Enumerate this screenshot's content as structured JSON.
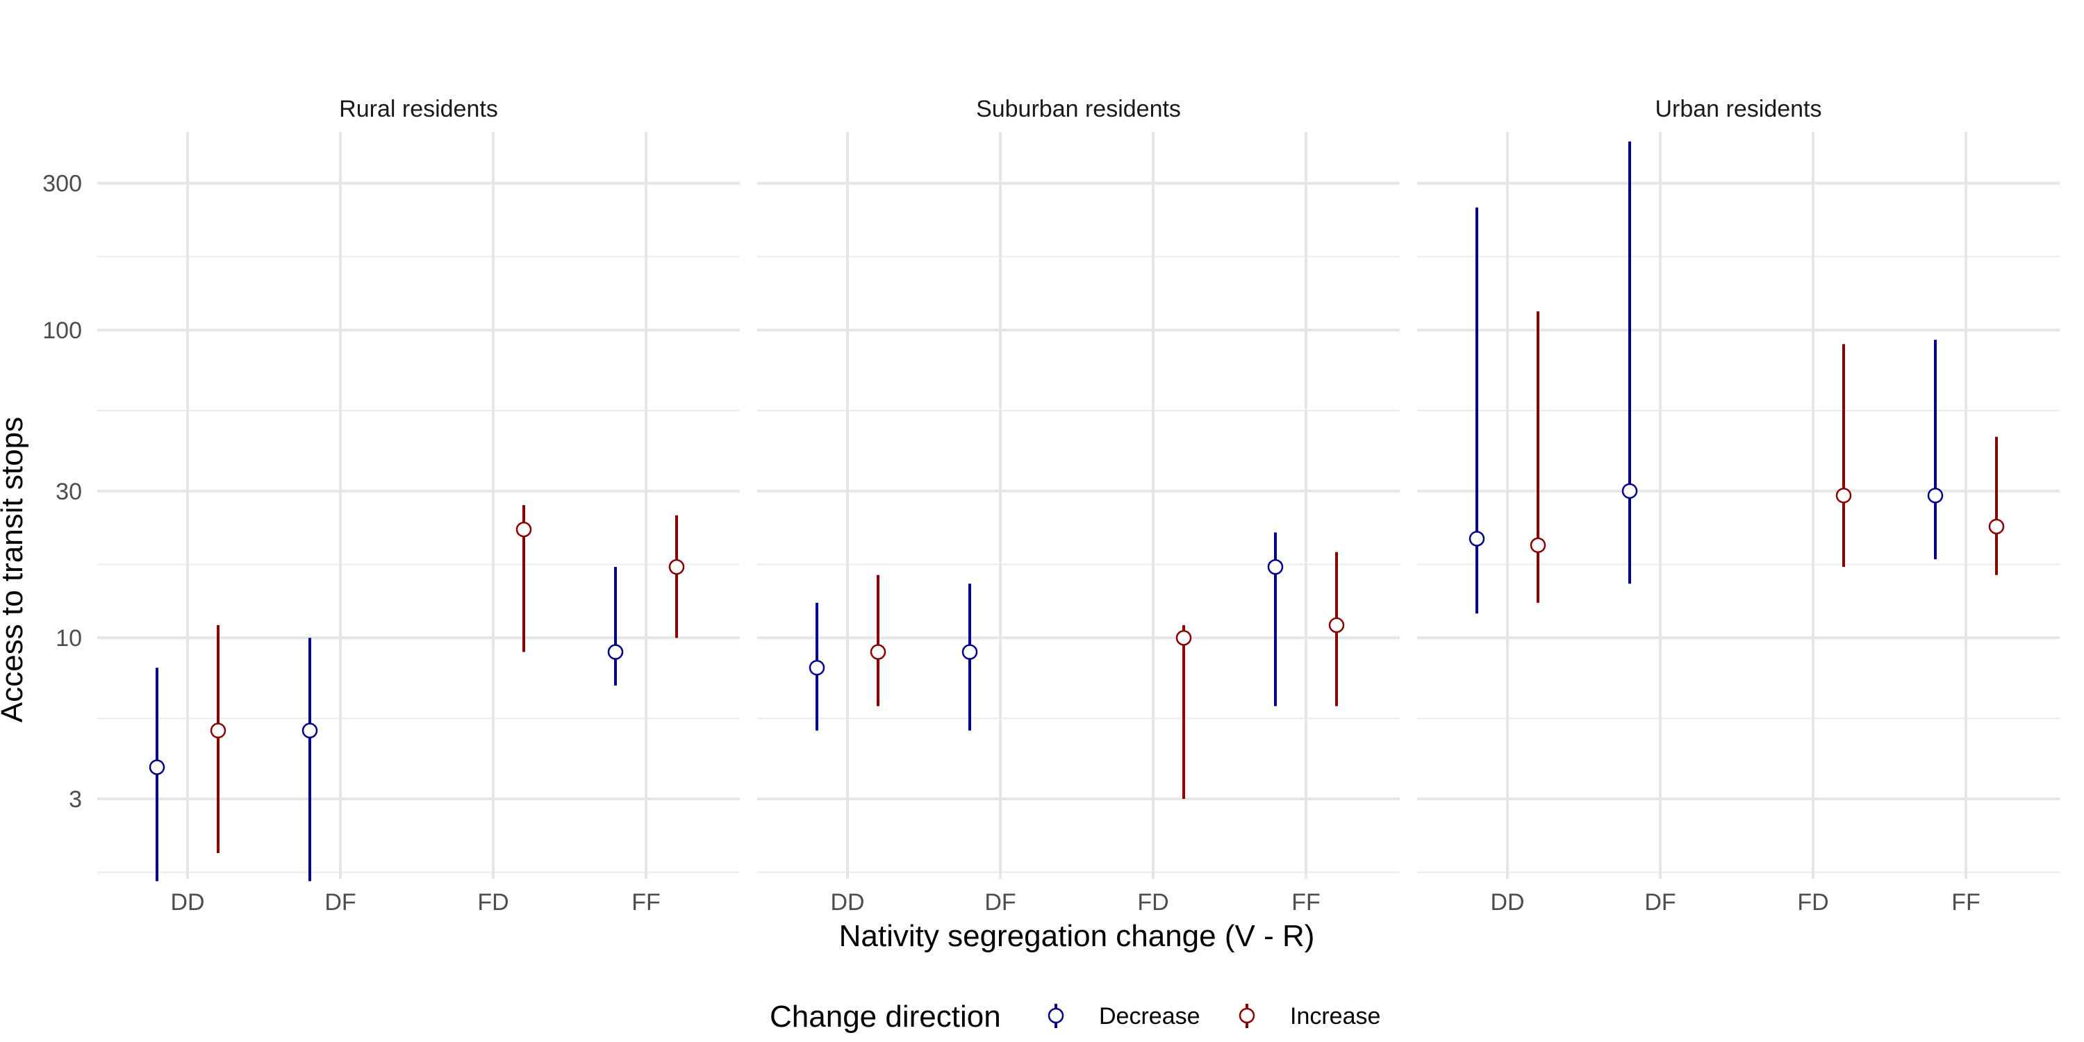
{
  "chart_data": {
    "type": "errorbar",
    "title": "",
    "xlabel": "Nativity segregation change (V - R)",
    "ylabel": "Access to transit stops",
    "y_scale": "log10",
    "ylim": [
      1.65,
      440
    ],
    "y_ticks": [
      3,
      10,
      30,
      100,
      300
    ],
    "y_tick_labels": [
      "3",
      "10",
      "30",
      "100",
      "300"
    ],
    "y_minor_breaks": [
      1.732,
      5.477,
      17.32,
      54.77,
      173.2
    ],
    "categories": [
      "DD",
      "DF",
      "FD",
      "FF"
    ],
    "grid": true,
    "legend": {
      "title": "Change direction",
      "position": "bottom",
      "entries": [
        {
          "name": "Decrease",
          "color": "#00008B"
        },
        {
          "name": "Increase",
          "color": "#8B0000"
        }
      ]
    },
    "panels": [
      {
        "title": "Rural residents",
        "series": [
          {
            "name": "Decrease",
            "points": [
              {
                "category": "DD",
                "estimate": 3.8,
                "lower": 1.62,
                "upper": 8.0
              },
              {
                "category": "DF",
                "estimate": 5.0,
                "lower": 1.62,
                "upper": 10.0
              },
              {
                "category": "FF",
                "estimate": 9.0,
                "lower": 7.0,
                "upper": 17.0
              }
            ]
          },
          {
            "name": "Increase",
            "points": [
              {
                "category": "DD",
                "estimate": 5.0,
                "lower": 2.0,
                "upper": 11.0
              },
              {
                "category": "FD",
                "estimate": 22.5,
                "lower": 9.0,
                "upper": 27.0
              },
              {
                "category": "FF",
                "estimate": 17.0,
                "lower": 10.0,
                "upper": 25.0
              }
            ]
          }
        ]
      },
      {
        "title": "Suburban residents",
        "series": [
          {
            "name": "Decrease",
            "points": [
              {
                "category": "DD",
                "estimate": 8.0,
                "lower": 5.0,
                "upper": 13.0
              },
              {
                "category": "DF",
                "estimate": 9.0,
                "lower": 5.0,
                "upper": 15.0
              },
              {
                "category": "FF",
                "estimate": 17.0,
                "lower": 6.0,
                "upper": 22.0
              }
            ]
          },
          {
            "name": "Increase",
            "points": [
              {
                "category": "DD",
                "estimate": 9.0,
                "lower": 6.0,
                "upper": 16.0
              },
              {
                "category": "FD",
                "estimate": 10.0,
                "lower": 3.0,
                "upper": 11.0
              },
              {
                "category": "FF",
                "estimate": 11.0,
                "lower": 6.0,
                "upper": 19.0
              }
            ]
          }
        ]
      },
      {
        "title": "Urban residents",
        "series": [
          {
            "name": "Decrease",
            "points": [
              {
                "category": "DD",
                "estimate": 21.0,
                "lower": 12.0,
                "upper": 250.0
              },
              {
                "category": "DF",
                "estimate": 30.0,
                "lower": 15.0,
                "upper": 410.0
              },
              {
                "category": "FF",
                "estimate": 29.0,
                "lower": 18.0,
                "upper": 93.0
              }
            ]
          },
          {
            "name": "Increase",
            "points": [
              {
                "category": "DD",
                "estimate": 20.0,
                "lower": 13.0,
                "upper": 115.0
              },
              {
                "category": "FD",
                "estimate": 29.0,
                "lower": 17.0,
                "upper": 90.0
              },
              {
                "category": "FF",
                "estimate": 23.0,
                "lower": 16.0,
                "upper": 45.0
              }
            ]
          }
        ]
      }
    ]
  }
}
